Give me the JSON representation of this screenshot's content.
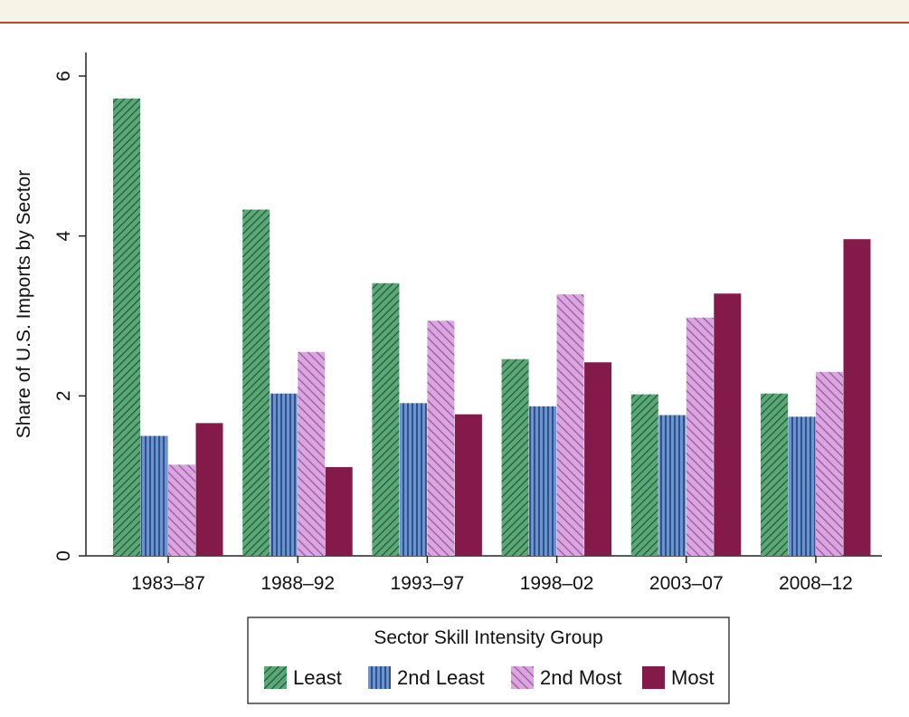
{
  "chart_data": {
    "type": "bar",
    "title": "",
    "xlabel": "",
    "ylabel": "Share of U.S. Imports by Sector",
    "ylim": [
      0,
      6.3
    ],
    "yticks": [
      0,
      2,
      4,
      6
    ],
    "grid": false,
    "legend_position": "bottom",
    "categories": [
      "1983–87",
      "1988–92",
      "1993–97",
      "1998–02",
      "2003–07",
      "2008–12"
    ],
    "legend_title": "Sector Skill Intensity Group",
    "series": [
      {
        "name": "Least",
        "color": "#3a8f5c",
        "pattern": "diagonal-right",
        "values": [
          5.72,
          4.33,
          3.41,
          2.46,
          2.02,
          2.03
        ]
      },
      {
        "name": "2nd Least",
        "color": "#4a74b8",
        "pattern": "vertical",
        "values": [
          1.5,
          2.03,
          1.91,
          1.87,
          1.76,
          1.74
        ]
      },
      {
        "name": "2nd Most",
        "color": "#c07cc8",
        "pattern": "diagonal-left",
        "values": [
          1.14,
          2.55,
          2.94,
          3.27,
          2.98,
          2.3
        ]
      },
      {
        "name": "Most",
        "color": "#841a4a",
        "pattern": "solid",
        "values": [
          1.66,
          1.11,
          1.77,
          2.42,
          3.28,
          3.96
        ]
      }
    ]
  }
}
